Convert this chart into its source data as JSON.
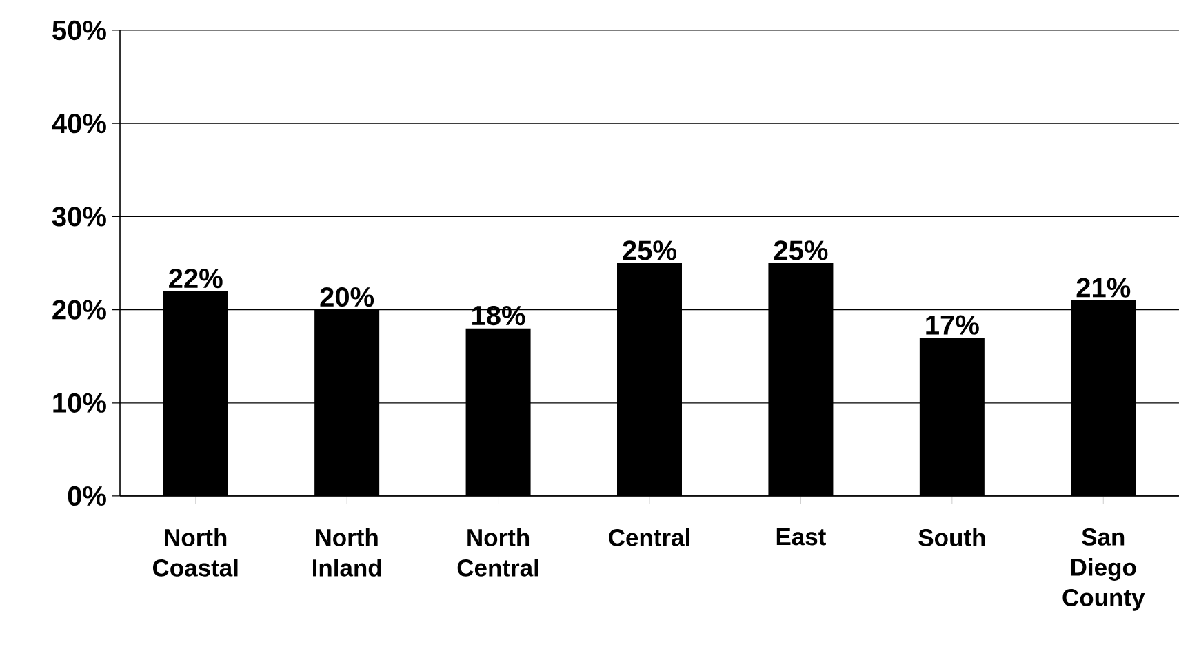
{
  "chart_data": {
    "type": "bar",
    "categories": [
      "North Coastal",
      "North Inland",
      "North Central",
      "Central",
      "East",
      "South",
      "San Diego County"
    ],
    "values": [
      22,
      20,
      18,
      25,
      25,
      17,
      21
    ],
    "value_labels": [
      "22%",
      "20%",
      "18%",
      "25%",
      "25%",
      "17%",
      "21%"
    ],
    "color": "#000000",
    "ylim": [
      0,
      50
    ],
    "yticks": [
      {
        "value": 0,
        "label": "0%"
      },
      {
        "value": 10,
        "label": "10%"
      },
      {
        "value": 20,
        "label": "20%"
      },
      {
        "value": 30,
        "label": "30%"
      },
      {
        "value": 40,
        "label": "40%"
      },
      {
        "value": 50,
        "label": "50%"
      }
    ],
    "grid": "y"
  }
}
